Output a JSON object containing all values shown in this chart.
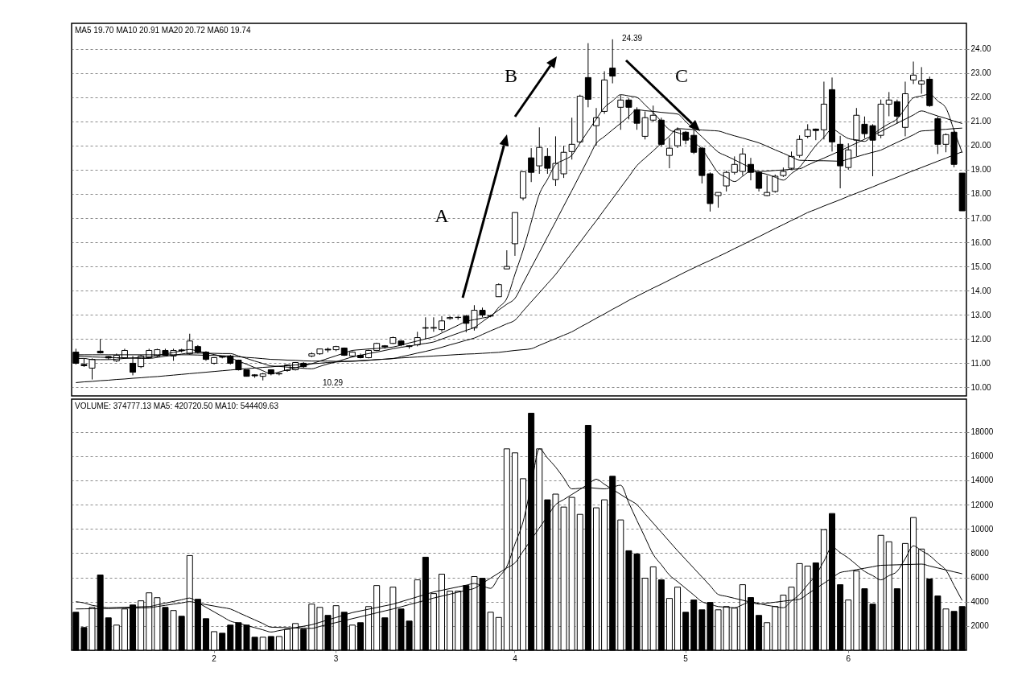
{
  "chart_data": [
    {
      "type": "candlestick",
      "subtitle": "MA5 19.70 MA10 20.91 MA20 20.72 MA60 19.74",
      "color": "#000000",
      "categories": [
        null,
        null,
        null,
        null,
        null,
        null,
        null,
        null,
        null,
        null,
        null,
        null,
        null,
        null,
        null,
        null,
        null,
        "2",
        null,
        null,
        null,
        null,
        null,
        null,
        null,
        null,
        null,
        null,
        null,
        null,
        null,
        null,
        "3",
        null,
        null,
        null,
        null,
        null,
        null,
        null,
        null,
        null,
        null,
        null,
        null,
        null,
        null,
        null,
        null,
        null,
        null,
        null,
        null,
        null,
        "4",
        null,
        null,
        null,
        null,
        null,
        null,
        null,
        null,
        null,
        null,
        null,
        null,
        null,
        null,
        null,
        null,
        null,
        null,
        null,
        null,
        "5",
        null,
        null,
        null,
        null,
        null,
        null,
        null,
        null,
        null,
        null,
        null,
        null,
        null,
        null,
        null,
        null,
        null,
        null,
        null,
        "6",
        null,
        null,
        null,
        null,
        null,
        null,
        null,
        null,
        null,
        null,
        null,
        null,
        null,
        null
      ],
      "ohlc": [
        [
          11.46,
          11.6,
          10.95,
          11.0
        ],
        [
          10.95,
          11.2,
          10.85,
          10.9
        ],
        [
          10.8,
          11.2,
          10.33,
          11.16
        ],
        [
          11.5,
          12.0,
          11.4,
          11.43
        ],
        [
          11.28,
          11.3,
          11.15,
          11.22
        ],
        [
          11.1,
          11.4,
          11.05,
          11.33
        ],
        [
          11.23,
          11.6,
          11.2,
          11.53
        ],
        [
          11.0,
          11.3,
          10.5,
          10.63
        ],
        [
          10.86,
          11.35,
          10.8,
          11.3
        ],
        [
          11.23,
          11.6,
          11.2,
          11.53
        ],
        [
          11.3,
          11.6,
          11.25,
          11.56
        ],
        [
          11.53,
          11.6,
          11.3,
          11.33
        ],
        [
          11.3,
          11.6,
          11.1,
          11.53
        ],
        [
          11.55,
          11.6,
          11.45,
          11.52
        ],
        [
          11.39,
          12.22,
          11.35,
          11.92
        ],
        [
          11.69,
          11.75,
          11.4,
          11.46
        ],
        [
          11.46,
          11.5,
          11.1,
          11.16
        ],
        [
          11.0,
          11.25,
          10.95,
          11.23
        ],
        [
          11.28,
          11.3,
          11.2,
          11.25
        ],
        [
          11.3,
          11.35,
          10.95,
          11.0
        ],
        [
          11.13,
          11.15,
          10.7,
          10.73
        ],
        [
          10.73,
          10.75,
          10.45,
          10.46
        ],
        [
          10.52,
          10.55,
          10.4,
          10.48
        ],
        [
          10.46,
          10.6,
          10.29,
          10.56
        ],
        [
          10.73,
          10.75,
          10.5,
          10.56
        ],
        [
          10.56,
          10.6,
          10.5,
          10.58
        ],
        [
          10.7,
          10.95,
          10.65,
          10.93
        ],
        [
          10.73,
          11.05,
          10.7,
          11.03
        ],
        [
          11.0,
          11.05,
          10.8,
          10.86
        ],
        [
          11.3,
          11.45,
          11.25,
          11.39
        ],
        [
          11.39,
          11.6,
          11.35,
          11.59
        ],
        [
          11.58,
          11.65,
          11.45,
          11.55
        ],
        [
          11.56,
          11.72,
          11.5,
          11.69
        ],
        [
          11.63,
          11.65,
          11.3,
          11.33
        ],
        [
          11.3,
          11.5,
          11.25,
          11.46
        ],
        [
          11.33,
          11.4,
          11.2,
          11.23
        ],
        [
          11.23,
          11.56,
          11.2,
          11.53
        ],
        [
          11.53,
          11.85,
          11.5,
          11.82
        ],
        [
          11.72,
          11.75,
          11.6,
          11.68
        ],
        [
          11.82,
          12.1,
          11.8,
          12.06
        ],
        [
          11.92,
          11.95,
          11.7,
          11.76
        ],
        [
          11.72,
          11.75,
          11.6,
          11.69
        ],
        [
          11.76,
          12.3,
          11.7,
          12.06
        ],
        [
          12.47,
          12.9,
          12.0,
          12.45
        ],
        [
          12.45,
          12.9,
          12.3,
          12.48
        ],
        [
          12.39,
          12.95,
          12.3,
          12.75
        ],
        [
          12.85,
          12.95,
          12.8,
          12.89
        ],
        [
          12.89,
          12.95,
          12.8,
          12.9
        ],
        [
          12.95,
          13.0,
          12.28,
          12.65
        ],
        [
          12.46,
          13.4,
          12.35,
          13.19
        ],
        [
          13.19,
          13.3,
          12.9,
          12.99
        ],
        [
          12.95,
          13.0,
          12.9,
          12.97
        ],
        [
          13.75,
          14.3,
          13.75,
          14.25
        ],
        [
          14.9,
          15.67,
          14.9,
          15.0
        ],
        [
          15.94,
          17.23,
          15.44,
          17.23
        ],
        [
          17.83,
          18.92,
          17.73,
          18.92
        ],
        [
          19.49,
          19.89,
          18.49,
          18.89
        ],
        [
          19.16,
          20.75,
          18.83,
          19.92
        ],
        [
          19.55,
          19.89,
          18.83,
          19.06
        ],
        [
          18.59,
          20.38,
          18.33,
          19.26
        ],
        [
          18.83,
          19.99,
          18.66,
          19.72
        ],
        [
          19.75,
          21.15,
          19.42,
          20.05
        ],
        [
          20.15,
          22.1,
          20.1,
          22.04
        ],
        [
          22.81,
          24.23,
          21.58,
          21.91
        ],
        [
          20.82,
          21.55,
          19.99,
          21.15
        ],
        [
          21.41,
          23.07,
          21.31,
          22.71
        ],
        [
          23.2,
          24.39,
          22.57,
          22.87
        ],
        [
          21.58,
          22.08,
          20.65,
          21.88
        ],
        [
          21.88,
          21.95,
          21.08,
          21.58
        ],
        [
          21.48,
          21.58,
          20.65,
          20.92
        ],
        [
          20.38,
          21.41,
          20.25,
          21.15
        ],
        [
          21.05,
          21.65,
          20.98,
          21.25
        ],
        [
          21.05,
          21.15,
          19.95,
          20.05
        ],
        [
          19.59,
          20.32,
          19.06,
          19.89
        ],
        [
          19.99,
          20.75,
          19.9,
          20.65
        ],
        [
          20.55,
          20.6,
          20.05,
          20.22
        ],
        [
          20.42,
          20.65,
          19.65,
          19.72
        ],
        [
          19.89,
          19.95,
          18.43,
          18.76
        ],
        [
          18.83,
          18.89,
          17.27,
          17.6
        ],
        [
          17.93,
          18.06,
          17.43,
          18.06
        ],
        [
          18.33,
          18.96,
          18.1,
          18.89
        ],
        [
          18.89,
          19.55,
          18.8,
          19.22
        ],
        [
          18.93,
          19.89,
          18.76,
          19.65
        ],
        [
          19.22,
          19.49,
          18.56,
          18.89
        ],
        [
          18.89,
          18.95,
          18.1,
          18.23
        ],
        [
          17.93,
          18.76,
          17.9,
          18.06
        ],
        [
          18.1,
          18.8,
          18.05,
          18.73
        ],
        [
          18.76,
          19.09,
          18.7,
          18.93
        ],
        [
          19.06,
          19.75,
          19.0,
          19.55
        ],
        [
          19.59,
          20.42,
          19.5,
          20.25
        ],
        [
          20.38,
          20.88,
          20.3,
          20.65
        ],
        [
          20.68,
          20.7,
          20.22,
          20.62
        ],
        [
          20.65,
          22.64,
          20.25,
          21.71
        ],
        [
          22.31,
          22.81,
          19.75,
          20.15
        ],
        [
          20.05,
          20.4,
          18.23,
          19.16
        ],
        [
          19.09,
          20.09,
          19.0,
          19.82
        ],
        [
          20.22,
          21.55,
          19.55,
          21.25
        ],
        [
          20.88,
          21.2,
          20.3,
          20.49
        ],
        [
          20.82,
          20.88,
          18.73,
          20.22
        ],
        [
          20.42,
          21.9,
          20.3,
          21.71
        ],
        [
          21.71,
          22.21,
          21.21,
          21.88
        ],
        [
          21.81,
          21.9,
          20.9,
          21.21
        ],
        [
          20.75,
          22.64,
          20.38,
          22.14
        ],
        [
          22.71,
          23.47,
          22.54,
          22.91
        ],
        [
          22.54,
          23.24,
          22.14,
          22.67
        ],
        [
          22.74,
          22.85,
          21.6,
          21.65
        ],
        [
          21.11,
          21.2,
          19.65,
          20.05
        ],
        [
          20.05,
          20.5,
          19.72,
          20.45
        ],
        [
          20.55,
          20.7,
          19.1,
          19.22
        ],
        [
          18.86,
          18.86,
          17.3,
          17.3
        ]
      ],
      "series": [
        {
          "type": "line",
          "color": "#000000",
          "values": [
            11.2,
            11.2,
            11.15,
            11.15,
            11.15,
            11.17,
            11.2,
            11.22,
            11.24,
            11.26,
            11.32,
            11.38,
            11.45,
            11.51,
            11.57,
            11.5,
            11.43,
            11.36,
            11.29,
            11.22,
            11.09,
            10.96,
            10.82,
            10.69,
            10.56,
            10.64,
            10.73,
            10.81,
            10.9,
            10.98,
            11.09,
            11.2,
            11.31,
            11.42,
            11.53,
            11.56,
            11.59,
            11.61,
            11.64,
            11.67,
            11.75,
            11.84,
            11.92,
            12.01,
            12.09,
            12.25,
            12.41,
            12.57,
            12.73,
            12.8,
            12.87,
            12.94,
            13.31,
            13.68,
            14.68,
            15.67,
            16.83,
            17.99,
            18.6,
            19.21,
            19.4,
            19.6,
            20.1,
            20.6,
            21.09,
            21.57,
            21.84,
            22.1,
            22.05,
            21.99,
            21.68,
            21.36,
            21.0,
            20.65,
            20.53,
            20.41,
            20.13,
            19.85,
            19.36,
            18.87,
            18.69,
            18.51,
            18.73,
            18.94,
            18.88,
            18.81,
            18.69,
            18.57,
            18.84,
            19.1,
            19.55,
            20.0,
            20.34,
            20.68,
            20.49,
            20.29,
            20.23,
            20.17,
            20.44,
            20.7,
            20.9,
            21.1,
            21.54,
            21.97,
            22.05,
            22.12,
            21.84,
            21.55,
            20.63,
            19.7
          ]
        },
        {
          "type": "line",
          "color": "#000000",
          "values": [
            11.3,
            11.28,
            11.26,
            11.25,
            11.24,
            11.23,
            11.22,
            11.21,
            11.2,
            11.2,
            11.24,
            11.29,
            11.33,
            11.38,
            11.42,
            11.42,
            11.41,
            11.41,
            11.4,
            11.4,
            11.3,
            11.2,
            11.09,
            10.99,
            10.89,
            10.87,
            10.84,
            10.82,
            10.79,
            10.77,
            10.87,
            10.97,
            11.06,
            11.16,
            11.26,
            11.33,
            11.4,
            11.46,
            11.53,
            11.6,
            11.66,
            11.71,
            11.77,
            11.82,
            11.88,
            12.0,
            12.12,
            12.24,
            12.36,
            12.48,
            12.72,
            12.96,
            13.2,
            13.44,
            13.68,
            14.31,
            14.95,
            15.58,
            16.22,
            16.85,
            17.5,
            18.14,
            18.79,
            19.44,
            20.09,
            20.37,
            20.65,
            20.92,
            21.2,
            21.48,
            21.44,
            21.41,
            21.37,
            21.34,
            21.3,
            20.99,
            20.67,
            20.36,
            20.04,
            19.73,
            19.57,
            19.41,
            19.24,
            19.08,
            18.92,
            18.94,
            18.97,
            18.99,
            19.02,
            19.04,
            19.19,
            19.34,
            19.48,
            19.63,
            19.78,
            19.94,
            20.1,
            20.26,
            20.42,
            20.58,
            20.75,
            20.92,
            21.09,
            21.26,
            21.43,
            21.33,
            21.22,
            21.12,
            21.01,
            20.91
          ]
        },
        {
          "type": "line",
          "color": "#000000",
          "values": [
            11.35,
            11.35,
            11.35,
            11.35,
            11.35,
            11.35,
            11.35,
            11.35,
            11.35,
            11.35,
            11.35,
            11.35,
            11.35,
            11.35,
            11.35,
            11.34,
            11.33,
            11.32,
            11.31,
            11.3,
            11.27,
            11.24,
            11.22,
            11.19,
            11.16,
            11.15,
            11.13,
            11.12,
            11.1,
            11.09,
            11.09,
            11.09,
            11.08,
            11.08,
            11.08,
            11.1,
            11.12,
            11.15,
            11.17,
            11.19,
            11.27,
            11.34,
            11.42,
            11.49,
            11.57,
            11.66,
            11.76,
            11.85,
            11.95,
            12.04,
            12.19,
            12.34,
            12.48,
            12.63,
            12.78,
            13.16,
            13.54,
            13.91,
            14.29,
            14.67,
            15.11,
            15.56,
            16.0,
            16.45,
            16.89,
            17.35,
            17.8,
            18.26,
            18.71,
            19.17,
            19.48,
            19.78,
            20.09,
            20.39,
            20.7,
            20.68,
            20.66,
            20.64,
            20.62,
            20.6,
            20.5,
            20.4,
            20.31,
            20.21,
            20.11,
            19.97,
            19.82,
            19.68,
            19.53,
            19.39,
            19.38,
            19.37,
            19.37,
            19.36,
            19.35,
            19.44,
            19.53,
            19.63,
            19.72,
            19.81,
            19.97,
            20.13,
            20.28,
            20.44,
            20.6,
            20.62,
            20.65,
            20.67,
            20.7,
            20.72
          ]
        },
        {
          "type": "line",
          "color": "#000000",
          "values": [
            10.2,
            10.23,
            10.25,
            10.28,
            10.3,
            10.33,
            10.35,
            10.38,
            10.4,
            10.43,
            10.45,
            10.48,
            10.51,
            10.54,
            10.57,
            10.6,
            10.63,
            10.66,
            10.69,
            10.72,
            10.75,
            10.78,
            10.8,
            10.83,
            10.85,
            10.88,
            10.9,
            10.93,
            10.95,
            10.98,
            11.0,
            11.03,
            11.05,
            11.07,
            11.09,
            11.11,
            11.13,
            11.15,
            11.17,
            11.2,
            11.22,
            11.24,
            11.26,
            11.28,
            11.3,
            11.32,
            11.34,
            11.36,
            11.38,
            11.39,
            11.41,
            11.43,
            11.45,
            11.49,
            11.53,
            11.56,
            11.6,
            11.74,
            11.88,
            12.02,
            12.16,
            12.3,
            12.49,
            12.67,
            12.86,
            13.04,
            13.23,
            13.41,
            13.6,
            13.77,
            13.94,
            14.11,
            14.27,
            14.44,
            14.61,
            14.78,
            14.94,
            15.1,
            15.25,
            15.41,
            15.57,
            15.74,
            15.9,
            16.07,
            16.23,
            16.4,
            16.57,
            16.73,
            16.9,
            17.06,
            17.23,
            17.36,
            17.5,
            17.63,
            17.76,
            17.9,
            18.03,
            18.16,
            18.29,
            18.43,
            18.56,
            18.69,
            18.83,
            18.96,
            19.09,
            19.22,
            19.35,
            19.48,
            19.61,
            19.74
          ]
        }
      ],
      "annotations": [
        "A",
        "B",
        "C",
        "24.39",
        "10.29"
      ],
      "ylim": [
        9.65,
        25.05
      ],
      "yticks": [
        {
          "value": 10,
          "label": "10.00"
        },
        {
          "value": 11,
          "label": "11.00"
        },
        {
          "value": 12,
          "label": "12.00"
        },
        {
          "value": 13,
          "label": "13.00"
        },
        {
          "value": 14,
          "label": "14.00"
        },
        {
          "value": 15,
          "label": "15.00"
        },
        {
          "value": 16,
          "label": "16.00"
        },
        {
          "value": 17,
          "label": "17.00"
        },
        {
          "value": 18,
          "label": "18.00"
        },
        {
          "value": 19,
          "label": "19.00"
        },
        {
          "value": 20,
          "label": "20.00"
        },
        {
          "value": 21,
          "label": "21.00"
        },
        {
          "value": 22,
          "label": "22.00"
        },
        {
          "value": 23,
          "label": "23.00"
        },
        {
          "value": 24,
          "label": "24.00"
        }
      ],
      "grid": "y",
      "tick_labels": "y"
    },
    {
      "type": "bar",
      "subtitle": "VOLUME: 374777.13 MA5: 420720.50 MA10: 544409.63",
      "categories": [
        null,
        null,
        null,
        null,
        null,
        null,
        null,
        null,
        null,
        null,
        null,
        null,
        null,
        null,
        null,
        null,
        null,
        "2",
        null,
        null,
        null,
        null,
        null,
        null,
        null,
        null,
        null,
        null,
        null,
        null,
        null,
        null,
        "3",
        null,
        null,
        null,
        null,
        null,
        null,
        null,
        null,
        null,
        null,
        null,
        null,
        null,
        null,
        null,
        null,
        null,
        null,
        null,
        null,
        null,
        "4",
        null,
        null,
        null,
        null,
        null,
        null,
        null,
        null,
        null,
        null,
        null,
        null,
        null,
        null,
        null,
        null,
        null,
        null,
        null,
        null,
        "5",
        null,
        null,
        null,
        null,
        null,
        null,
        null,
        null,
        null,
        null,
        null,
        null,
        null,
        null,
        null,
        null,
        null,
        null,
        null,
        "6",
        null,
        null,
        null,
        null,
        null,
        null,
        null,
        null,
        null,
        null,
        null,
        null,
        null,
        null
      ],
      "series": [
        {
          "type": "bar",
          "values": [
            3130,
            1870,
            3530,
            6200,
            2670,
            2070,
            3400,
            3730,
            4070,
            4730,
            4330,
            3530,
            3270,
            2800,
            7800,
            4200,
            2600,
            1530,
            1400,
            2070,
            2270,
            2070,
            1070,
            1070,
            1130,
            1130,
            1730,
            2200,
            1730,
            3800,
            3530,
            2870,
            3670,
            3130,
            2070,
            2270,
            3600,
            5330,
            2670,
            5200,
            3400,
            2400,
            5800,
            7670,
            4670,
            6270,
            4870,
            4870,
            5330,
            6070,
            5930,
            3130,
            2700,
            16600,
            16270,
            14140,
            19540,
            16600,
            12400,
            12870,
            11800,
            12600,
            11200,
            18540,
            11740,
            12400,
            14340,
            10740,
            8200,
            7940,
            5940,
            6870,
            5800,
            4270,
            5200,
            3130,
            4140,
            3330,
            3940,
            3330,
            3600,
            3470,
            5400,
            4340,
            2870,
            2270,
            3600,
            4540,
            5200,
            7140,
            6940,
            7200,
            9940,
            11270,
            5400,
            4140,
            6540,
            5070,
            3800,
            9470,
            8940,
            5070,
            8800,
            10940,
            8340,
            5870,
            4470,
            3400,
            3200,
            3600
          ],
          "colors": [
            "#000000",
            "#000000",
            "#ffffff",
            "#000000",
            "#000000",
            "#ffffff",
            "#ffffff",
            "#000000",
            "#ffffff",
            "#ffffff",
            "#ffffff",
            "#000000",
            "#ffffff",
            "#000000",
            "#ffffff",
            "#000000",
            "#000000",
            "#ffffff",
            "#000000",
            "#000000",
            "#000000",
            "#000000",
            "#000000",
            "#ffffff",
            "#000000",
            "#ffffff",
            "#ffffff",
            "#ffffff",
            "#000000",
            "#ffffff",
            "#ffffff",
            "#000000",
            "#ffffff",
            "#000000",
            "#ffffff",
            "#000000",
            "#ffffff",
            "#ffffff",
            "#000000",
            "#ffffff",
            "#000000",
            "#000000",
            "#ffffff",
            "#000000",
            "#ffffff",
            "#ffffff",
            "#ffffff",
            "#ffffff",
            "#000000",
            "#ffffff",
            "#000000",
            "#ffffff",
            "#ffffff",
            "#ffffff",
            "#ffffff",
            "#ffffff",
            "#000000",
            "#ffffff",
            "#000000",
            "#ffffff",
            "#ffffff",
            "#ffffff",
            "#ffffff",
            "#000000",
            "#ffffff",
            "#ffffff",
            "#000000",
            "#ffffff",
            "#000000",
            "#000000",
            "#ffffff",
            "#ffffff",
            "#000000",
            "#ffffff",
            "#ffffff",
            "#000000",
            "#000000",
            "#000000",
            "#000000",
            "#ffffff",
            "#ffffff",
            "#ffffff",
            "#ffffff",
            "#000000",
            "#000000",
            "#ffffff",
            "#ffffff",
            "#ffffff",
            "#ffffff",
            "#ffffff",
            "#ffffff",
            "#000000",
            "#ffffff",
            "#000000",
            "#000000",
            "#ffffff",
            "#ffffff",
            "#000000",
            "#000000",
            "#ffffff",
            "#ffffff",
            "#000000",
            "#ffffff",
            "#ffffff",
            "#ffffff",
            "#000000",
            "#000000",
            "#ffffff",
            "#000000",
            "#000000"
          ]
        },
        {
          "type": "line",
          "color": "#000000",
          "values": [
            4000,
            3900,
            3700,
            3600,
            3500,
            3520,
            3540,
            3560,
            3580,
            3600,
            3740,
            3880,
            4020,
            4160,
            4300,
            3920,
            3540,
            3160,
            2780,
            2400,
            2220,
            2040,
            1860,
            1680,
            1500,
            1620,
            1740,
            1860,
            1980,
            2100,
            2300,
            2500,
            2700,
            2900,
            3100,
            3240,
            3380,
            3520,
            3660,
            3800,
            4000,
            4200,
            4400,
            4600,
            4800,
            4940,
            5080,
            5220,
            5360,
            5500,
            5300,
            5100,
            6000,
            6900,
            8750,
            10600,
            13600,
            16600,
            15850,
            15100,
            14200,
            13300,
            13350,
            13400,
            13350,
            13300,
            13450,
            13600,
            12150,
            10700,
            9300,
            7900,
            7050,
            6200,
            5650,
            5100,
            4550,
            4000,
            3800,
            3600,
            3550,
            3500,
            3750,
            4000,
            3850,
            3700,
            3600,
            3500,
            4050,
            4600,
            5400,
            6200,
            7350,
            8500,
            8050,
            7600,
            7050,
            6500,
            6150,
            5800,
            6150,
            6500,
            7550,
            8600,
            8200,
            7800,
            7200,
            6600,
            5350,
            4100
          ]
        },
        {
          "type": "line",
          "color": "#000000",
          "values": [
            3400,
            3410,
            3420,
            3430,
            3440,
            3450,
            3460,
            3470,
            3490,
            3500,
            3600,
            3700,
            3800,
            3900,
            4000,
            3880,
            3760,
            3640,
            3520,
            3400,
            3100,
            2800,
            2500,
            2200,
            1900,
            1880,
            1860,
            1840,
            1820,
            1800,
            1960,
            2120,
            2280,
            2440,
            2600,
            2760,
            2920,
            3080,
            3240,
            3400,
            3580,
            3760,
            3940,
            4120,
            4300,
            4460,
            4620,
            4780,
            4940,
            5100,
            5520,
            5940,
            6360,
            6780,
            7200,
            8160,
            9120,
            10080,
            11040,
            12000,
            12420,
            12840,
            13260,
            13680,
            14100,
            13680,
            13260,
            12840,
            12420,
            12000,
            11240,
            10480,
            9720,
            8960,
            8200,
            7480,
            6760,
            6040,
            5320,
            4600,
            4440,
            4280,
            4120,
            3960,
            3800,
            3880,
            3960,
            4040,
            4120,
            4200,
            4640,
            5080,
            5520,
            5960,
            6400,
            6520,
            6640,
            6760,
            6880,
            7000,
            7020,
            7040,
            7060,
            7080,
            7100,
            6940,
            6780,
            6620,
            6460,
            6300
          ]
        }
      ],
      "ylim": [
        0,
        20700
      ],
      "yticks": [
        2000,
        4000,
        6000,
        8000,
        10000,
        12000,
        14000,
        16000,
        18000
      ],
      "grid": "y"
    }
  ]
}
